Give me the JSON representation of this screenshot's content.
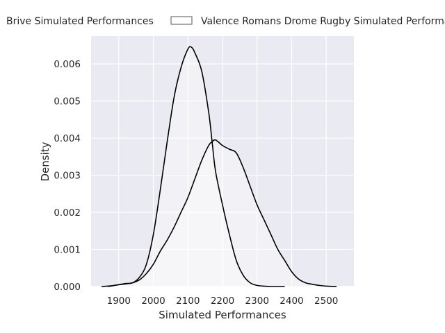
{
  "chart_data": {
    "type": "area",
    "title": "",
    "xlabel": "Simulated Performances",
    "ylabel": "Density",
    "xlim": [
      1820,
      2580
    ],
    "ylim": [
      0,
      0.00675
    ],
    "xticks": [
      1900,
      2000,
      2100,
      2200,
      2300,
      2400,
      2500
    ],
    "yticks": [
      0.0,
      0.001,
      0.002,
      0.003,
      0.004,
      0.005,
      0.006
    ],
    "ytick_labels": [
      "0.000",
      "0.001",
      "0.002",
      "0.003",
      "0.004",
      "0.005",
      "0.006"
    ],
    "grid": true,
    "legend": "top, outside, horizontal",
    "series": [
      {
        "name": "Brive Simulated Performances",
        "color": "#000000",
        "x": [
          1850,
          1880,
          1900,
          1920,
          1940,
          1960,
          1980,
          2000,
          2020,
          2040,
          2060,
          2080,
          2100,
          2110,
          2120,
          2140,
          2160,
          2170,
          2180,
          2200,
          2220,
          2240,
          2260,
          2280,
          2300,
          2320,
          2340,
          2360,
          2380
        ],
        "y": [
          0.0,
          2e-05,
          5e-05,
          8e-05,
          0.0001,
          0.00025,
          0.0006,
          0.0014,
          0.0026,
          0.0039,
          0.0051,
          0.0059,
          0.0064,
          0.00645,
          0.0063,
          0.0058,
          0.0047,
          0.0039,
          0.0031,
          0.0022,
          0.0014,
          0.0007,
          0.0003,
          0.0001,
          3e-05,
          1e-05,
          0.0,
          0.0,
          0.0
        ]
      },
      {
        "name": "Valence Romans Drome Rugby Simulated Performances",
        "color": "#000000",
        "x": [
          1870,
          1900,
          1920,
          1940,
          1960,
          1980,
          2000,
          2020,
          2040,
          2060,
          2080,
          2100,
          2120,
          2140,
          2160,
          2170,
          2180,
          2200,
          2220,
          2240,
          2260,
          2280,
          2300,
          2320,
          2340,
          2360,
          2380,
          2400,
          2420,
          2440,
          2460,
          2480,
          2500,
          2530
        ],
        "y": [
          0.0,
          5e-05,
          7e-05,
          0.0001,
          0.00018,
          0.00035,
          0.0006,
          0.00095,
          0.00125,
          0.0016,
          0.002,
          0.0024,
          0.0029,
          0.0034,
          0.0038,
          0.0039,
          0.00395,
          0.0038,
          0.0037,
          0.0036,
          0.0032,
          0.0027,
          0.0022,
          0.0018,
          0.0014,
          0.001,
          0.0007,
          0.0004,
          0.0002,
          0.0001,
          6e-05,
          3e-05,
          1e-05,
          0.0
        ]
      }
    ]
  }
}
